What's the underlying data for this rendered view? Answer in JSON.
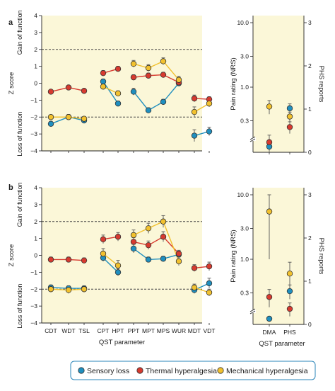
{
  "legend": {
    "items": [
      {
        "label": "Sensory loss",
        "color": "#1f8fbf"
      },
      {
        "label": "Thermal hyperalgesia",
        "color": "#d73a2f"
      },
      {
        "label": "Mechanical hyperalgesia",
        "color": "#f2c12e"
      }
    ]
  },
  "colors": {
    "panel_bg": "#fbf7d8",
    "axis": "#222222",
    "dashed": "#444444"
  },
  "chart_data": [
    {
      "panel_label": "a",
      "type": "line",
      "ylabel": "Z score",
      "gain_label": "Gain of function",
      "loss_label": "Loss of function",
      "xlabel": "",
      "ylim": [
        -4,
        4
      ],
      "yticks": [
        -4,
        -3,
        -2,
        -1,
        0,
        1,
        2,
        3,
        4
      ],
      "reference_lines": [
        2,
        -2
      ],
      "groups": [
        {
          "categories": [
            "CDT",
            "WDT",
            "TSL"
          ]
        },
        {
          "categories": [
            "CPT",
            "HPT"
          ]
        },
        {
          "categories": [
            "PPT",
            "MPT",
            "MPS",
            "WUR"
          ]
        },
        {
          "categories": [
            "MDT",
            "VDT"
          ]
        }
      ],
      "series": [
        {
          "name": "Sensory loss",
          "color": "#1f8fbf",
          "values": [
            -2.4,
            -2.0,
            -2.2,
            0.1,
            -1.2,
            -0.5,
            -1.6,
            -1.1,
            0.0,
            -3.1,
            -2.85
          ],
          "errors": [
            0.15,
            0.15,
            0.15,
            0.15,
            0.15,
            0.2,
            0.15,
            0.15,
            0.15,
            0.35,
            0.25
          ]
        },
        {
          "name": "Thermal hyperalgesia",
          "color": "#d73a2f",
          "values": [
            -0.5,
            -0.25,
            -0.45,
            0.6,
            0.85,
            0.35,
            0.45,
            0.5,
            0.05,
            -0.9,
            -0.95
          ],
          "errors": [
            0.1,
            0.1,
            0.1,
            0.15,
            0.15,
            0.15,
            0.15,
            0.15,
            0.15,
            0.2,
            0.15
          ]
        },
        {
          "name": "Mechanical hyperalgesia",
          "color": "#f2c12e",
          "values": [
            -2.0,
            -2.0,
            -2.1,
            -0.2,
            -0.6,
            1.15,
            0.9,
            1.3,
            0.2,
            -1.7,
            -1.2
          ],
          "errors": [
            0.1,
            0.1,
            0.1,
            0.15,
            0.15,
            0.2,
            0.2,
            0.2,
            0.2,
            0.3,
            0.2
          ]
        }
      ],
      "right": {
        "ylabel_left": "Pain rating (NRS)",
        "ylabel_right": "PHS reports",
        "left_ticks": [
          "10.0",
          "3.0",
          "1.0",
          "0.3"
        ],
        "left_tick_values": [
          10,
          3,
          1,
          0.3
        ],
        "right_ticks": [
          "3",
          "2",
          "1",
          "0"
        ],
        "right_tick_values": [
          3,
          2,
          1,
          0
        ],
        "categories": [
          "DMA",
          "PHS"
        ],
        "points": [
          {
            "category": "DMA",
            "series": "Sensory loss",
            "nrs": 0.05,
            "err": 0
          },
          {
            "category": "DMA",
            "series": "Thermal hyperalgesia",
            "nrs": 0.14,
            "err": 0.04
          },
          {
            "category": "DMA",
            "series": "Mechanical hyperalgesia",
            "nrs": 0.5,
            "err": 0.12
          },
          {
            "category": "PHS",
            "series": "Sensory loss",
            "nrs": 0.47,
            "err": 0.08
          },
          {
            "category": "PHS",
            "series": "Thermal hyperalgesia",
            "nrs": 0.24,
            "err": 0.05
          },
          {
            "category": "PHS",
            "series": "Mechanical hyperalgesia",
            "nrs": 0.35,
            "err": 0.06
          }
        ]
      }
    },
    {
      "panel_label": "b",
      "type": "line",
      "ylabel": "Z score",
      "gain_label": "Gain of function",
      "loss_label": "Loss of function",
      "xlabel": "QST parameter",
      "ylim": [
        -4,
        4
      ],
      "yticks": [
        -4,
        -3,
        -2,
        -1,
        0,
        1,
        2,
        3,
        4
      ],
      "reference_lines": [
        2,
        -2
      ],
      "groups": [
        {
          "categories": [
            "CDT",
            "WDT",
            "TSL"
          ]
        },
        {
          "categories": [
            "CPT",
            "HPT"
          ]
        },
        {
          "categories": [
            "PPT",
            "MPT",
            "MPS",
            "WUR"
          ]
        },
        {
          "categories": [
            "MDT",
            "VDT"
          ]
        }
      ],
      "series": [
        {
          "name": "Sensory loss",
          "color": "#1f8fbf",
          "values": [
            -1.9,
            -1.95,
            -1.95,
            -0.15,
            -1.0,
            0.4,
            -0.25,
            -0.2,
            0.05,
            -2.05,
            -1.65
          ],
          "errors": [
            0.15,
            0.15,
            0.15,
            0.2,
            0.2,
            0.25,
            0.15,
            0.15,
            0.2,
            0.2,
            0.3
          ]
        },
        {
          "name": "Thermal hyperalgesia",
          "color": "#d73a2f",
          "values": [
            -0.25,
            -0.25,
            -0.3,
            0.95,
            1.1,
            0.8,
            0.6,
            1.1,
            0.1,
            -0.75,
            -0.65
          ],
          "errors": [
            0.15,
            0.15,
            0.15,
            0.25,
            0.25,
            0.25,
            0.25,
            0.3,
            0.2,
            0.2,
            0.25
          ]
        },
        {
          "name": "Mechanical hyperalgesia",
          "color": "#f2c12e",
          "values": [
            -2.0,
            -2.05,
            -2.0,
            0.1,
            -0.6,
            1.2,
            1.6,
            2.0,
            -0.35,
            -1.9,
            -2.2
          ],
          "errors": [
            0.15,
            0.2,
            0.15,
            0.3,
            0.3,
            0.3,
            0.3,
            0.35,
            0.25,
            0.2,
            0.2
          ]
        }
      ],
      "right": {
        "ylabel_left": "Pain rating (NRS)",
        "ylabel_right": "PHS reports",
        "xlabel": "QST parameter",
        "left_ticks": [
          "10.0",
          "3.0",
          "1.0",
          "0.3"
        ],
        "left_tick_values": [
          10,
          3,
          1,
          0.3
        ],
        "right_ticks": [
          "3",
          "2",
          "1",
          "0"
        ],
        "right_tick_values": [
          3,
          2,
          1,
          0
        ],
        "categories": [
          "DMA",
          "PHS"
        ],
        "points": [
          {
            "category": "DMA",
            "series": "Sensory loss",
            "nrs": 0.05,
            "err": 0
          },
          {
            "category": "DMA",
            "series": "Thermal hyperalgesia",
            "nrs": 0.26,
            "err": 0.08
          },
          {
            "category": "DMA",
            "series": "Mechanical hyperalgesia",
            "nrs": 5.5,
            "err": 4.5
          },
          {
            "category": "PHS",
            "series": "Sensory loss",
            "nrs": 0.32,
            "err": 0.08
          },
          {
            "category": "PHS",
            "series": "Thermal hyperalgesia",
            "nrs": 0.17,
            "err": 0.04
          },
          {
            "category": "PHS",
            "series": "Mechanical hyperalgesia",
            "nrs": 0.6,
            "err": 0.3
          }
        ]
      }
    }
  ]
}
